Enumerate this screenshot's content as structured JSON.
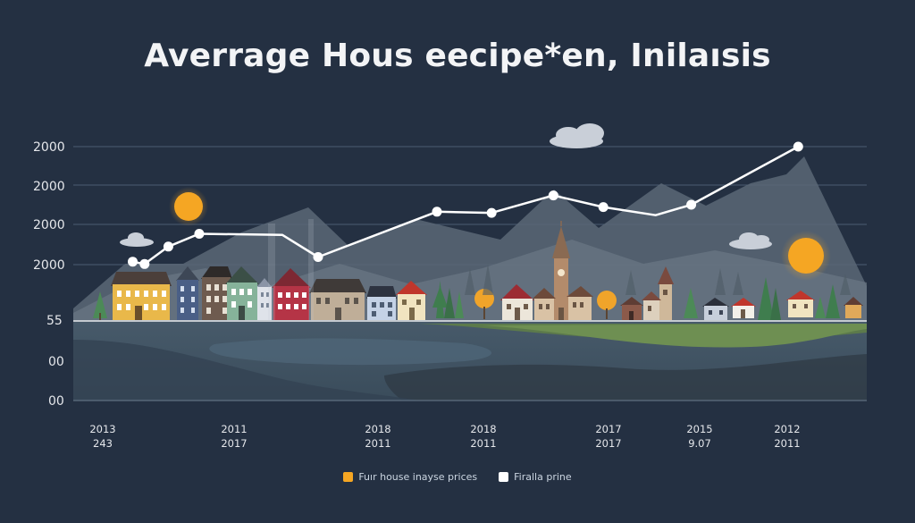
{
  "chart_data": {
    "type": "line",
    "title": "Averrage Hous eecipe*en, Inilaısis",
    "x_tick_labels": [
      {
        "line1": "2013",
        "line2": "243"
      },
      {
        "line1": "2011",
        "line2": "2017"
      },
      {
        "line1": "2018",
        "line2": "2011"
      },
      {
        "line1": "2018",
        "line2": "2011"
      },
      {
        "line1": "2017",
        "line2": "2017"
      },
      {
        "line1": "2015",
        "line2": "9.07"
      },
      {
        "line1": "2012",
        "line2": "2011"
      }
    ],
    "y_tick_labels": [
      "2000",
      "2000",
      "2000",
      "2000",
      "55",
      "00",
      "00"
    ],
    "series": [
      {
        "name": "Fuır house inayse prices",
        "color": "#f5a623",
        "points": [
          {
            "x": 0.25,
            "y": 0.51
          },
          {
            "x": 0.3,
            "y": 0.49
          },
          {
            "x": 0.4,
            "y": 0.64
          },
          {
            "x": 0.53,
            "y": 0.75
          },
          {
            "x": 0.88,
            "y": 0.74
          },
          {
            "x": 1.03,
            "y": 0.55
          },
          {
            "x": 1.53,
            "y": 0.94
          },
          {
            "x": 1.76,
            "y": 0.93
          },
          {
            "x": 2.02,
            "y": 1.08
          },
          {
            "x": 2.23,
            "y": 0.98
          },
          {
            "x": 2.45,
            "y": 0.91
          },
          {
            "x": 2.6,
            "y": 1.0
          },
          {
            "x": 3.05,
            "y": 1.5
          }
        ]
      },
      {
        "name": "Firalla prine",
        "color": "#ffffff"
      }
    ],
    "grid": true,
    "legend_position": "bottom-center"
  }
}
